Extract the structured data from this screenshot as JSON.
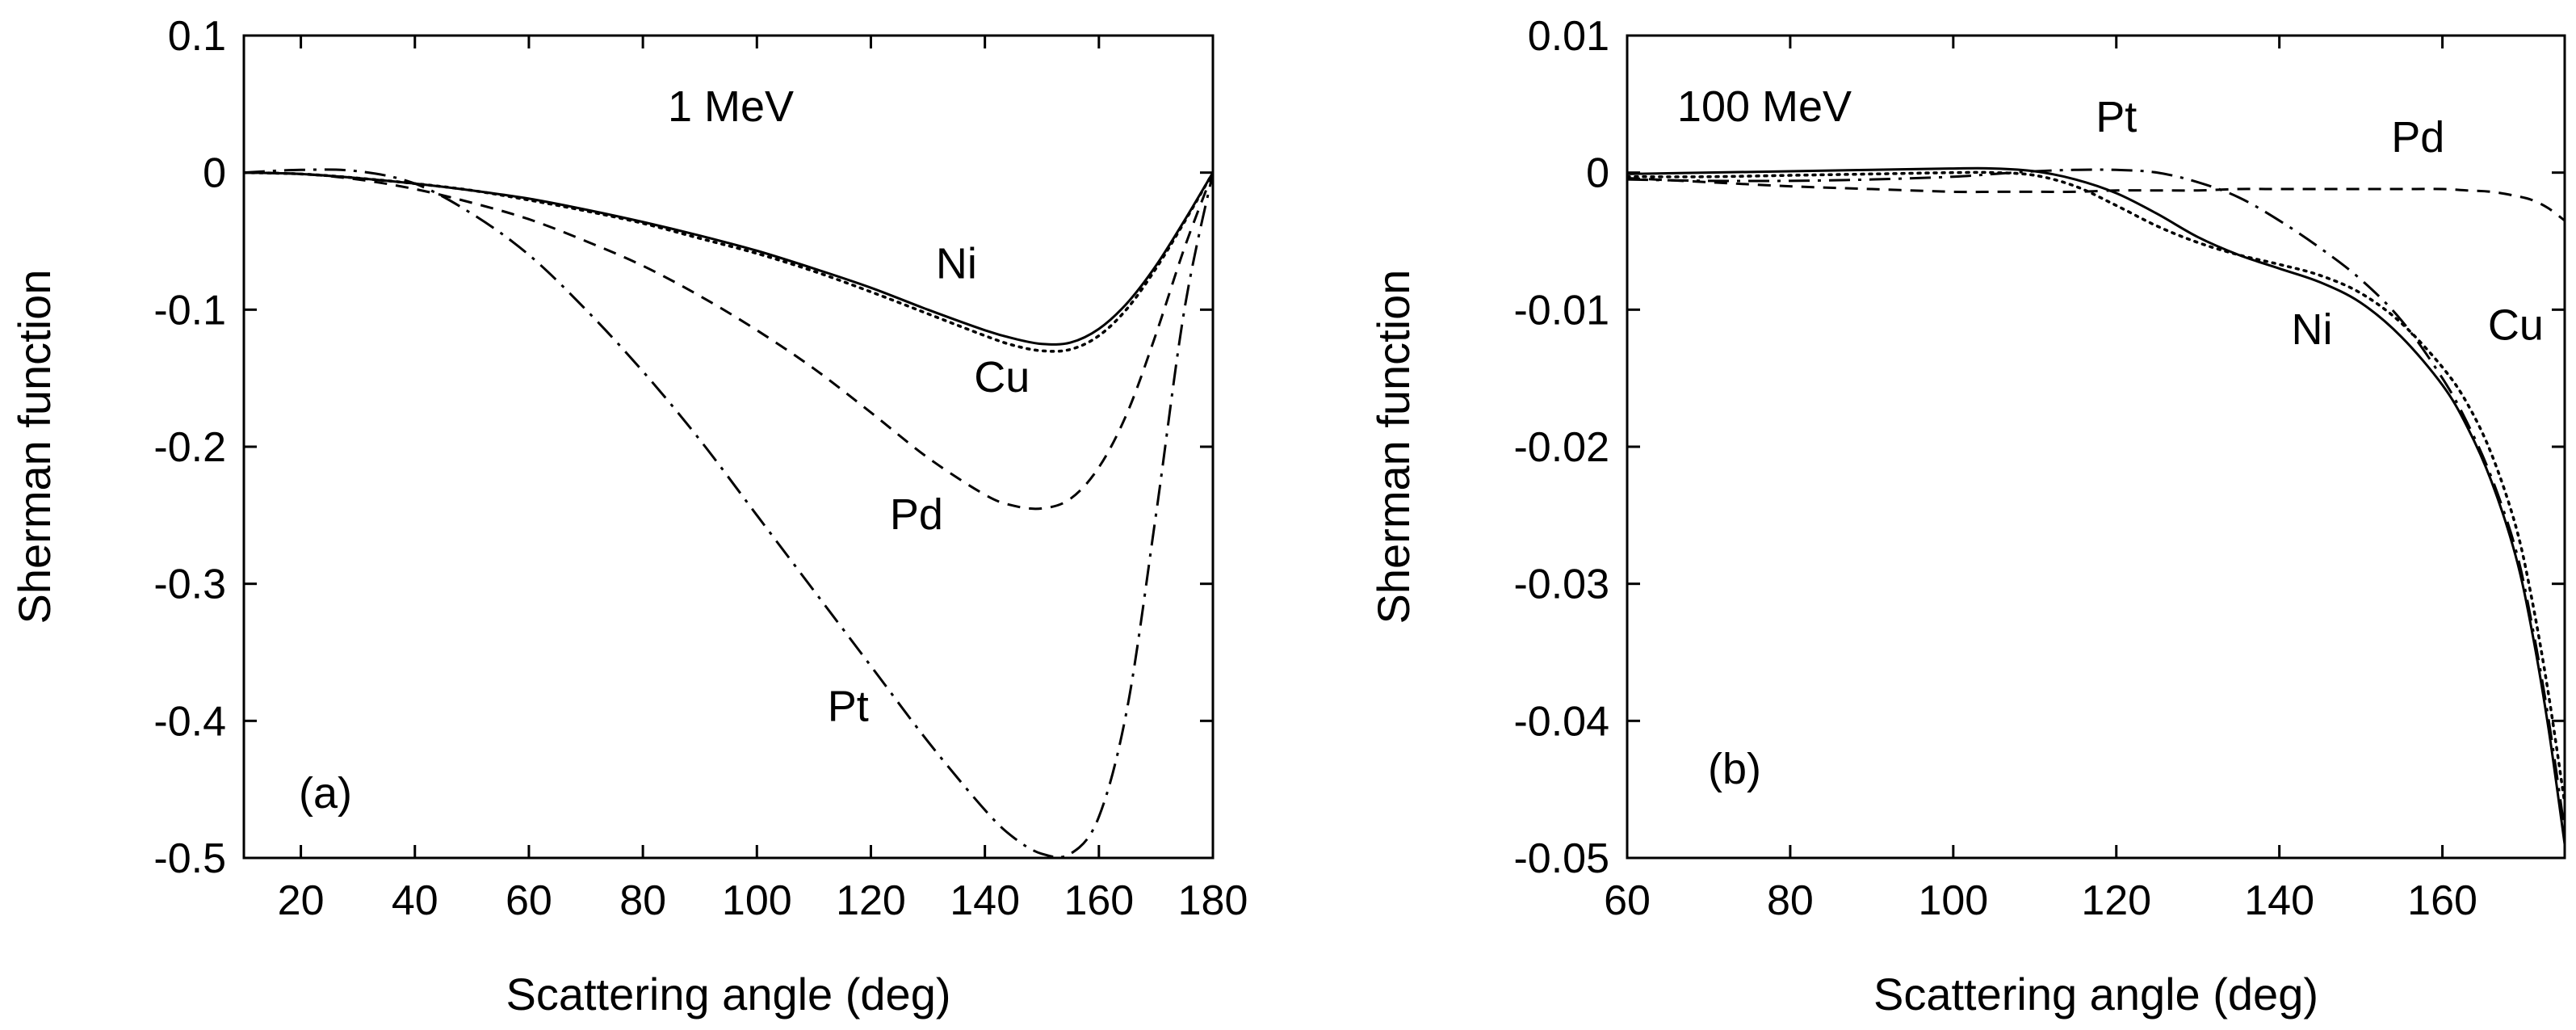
{
  "chart_data": [
    {
      "type": "line",
      "panel": "(a)",
      "annotation": "1 MeV",
      "xlabel": "Scattering angle  (deg)",
      "ylabel": "Sherman function",
      "xlim": [
        10,
        180
      ],
      "ylim": [
        -0.5,
        0.1
      ],
      "xticks": [
        20,
        40,
        60,
        80,
        100,
        120,
        140,
        160,
        180
      ],
      "xtick_labels": [
        "20",
        "40",
        "60",
        "80",
        "100",
        "120",
        "140",
        "160",
        "180"
      ],
      "yticks": [
        0.1,
        0,
        -0.1,
        -0.2,
        -0.3,
        -0.4,
        -0.5
      ],
      "ytick_labels": [
        "0.1",
        "0",
        "-0.1",
        "-0.2",
        "-0.3",
        "-0.4",
        "-0.5"
      ],
      "series": [
        {
          "name": "Ni",
          "style": "solid",
          "label_at": [
            135,
            -0.077
          ],
          "x": [
            10,
            20,
            30,
            40,
            50,
            60,
            70,
            80,
            90,
            100,
            110,
            120,
            130,
            140,
            145,
            150,
            155,
            160,
            165,
            170,
            175,
            180
          ],
          "y": [
            0,
            -0.001,
            -0.004,
            -0.008,
            -0.013,
            -0.019,
            -0.027,
            -0.036,
            -0.046,
            -0.057,
            -0.07,
            -0.084,
            -0.1,
            -0.115,
            -0.121,
            -0.125,
            -0.124,
            -0.114,
            -0.095,
            -0.068,
            -0.035,
            0
          ]
        },
        {
          "name": "Cu",
          "style": "dotted",
          "label_at": [
            143,
            -0.16
          ],
          "x": [
            10,
            20,
            30,
            40,
            50,
            60,
            70,
            80,
            90,
            100,
            110,
            120,
            130,
            140,
            145,
            150,
            155,
            160,
            165,
            170,
            175,
            180
          ],
          "y": [
            0,
            -0.001,
            -0.004,
            -0.008,
            -0.013,
            -0.02,
            -0.028,
            -0.037,
            -0.048,
            -0.059,
            -0.072,
            -0.087,
            -0.103,
            -0.119,
            -0.126,
            -0.13,
            -0.129,
            -0.119,
            -0.099,
            -0.07,
            -0.036,
            0
          ]
        },
        {
          "name": "Pd",
          "style": "dashed",
          "label_at": [
            128,
            -0.26
          ],
          "x": [
            10,
            20,
            30,
            40,
            50,
            60,
            70,
            80,
            90,
            100,
            110,
            120,
            130,
            140,
            145,
            150,
            155,
            160,
            165,
            170,
            175,
            180
          ],
          "y": [
            0,
            -0.001,
            -0.005,
            -0.012,
            -0.022,
            -0.034,
            -0.05,
            -0.068,
            -0.09,
            -0.115,
            -0.143,
            -0.175,
            -0.208,
            -0.235,
            -0.243,
            -0.245,
            -0.238,
            -0.215,
            -0.175,
            -0.118,
            -0.055,
            0
          ]
        },
        {
          "name": "Pt",
          "style": "dashdot",
          "label_at": [
            116,
            -0.4
          ],
          "x": [
            10,
            20,
            30,
            40,
            50,
            60,
            70,
            80,
            90,
            100,
            110,
            120,
            130,
            140,
            145,
            150,
            155,
            160,
            165,
            170,
            175,
            180
          ],
          "y": [
            0,
            0.002,
            0.001,
            -0.008,
            -0.03,
            -0.06,
            -0.1,
            -0.145,
            -0.195,
            -0.25,
            -0.305,
            -0.36,
            -0.415,
            -0.465,
            -0.485,
            -0.497,
            -0.497,
            -0.47,
            -0.39,
            -0.25,
            -0.1,
            0
          ]
        }
      ]
    },
    {
      "type": "line",
      "panel": "(b)",
      "annotation": "100 MeV",
      "xlabel": "Scattering angle  (deg)",
      "ylabel": "Sherman function",
      "xlim": [
        60,
        175
      ],
      "ylim": [
        -0.05,
        0.01
      ],
      "xticks": [
        60,
        80,
        100,
        120,
        140,
        160
      ],
      "xtick_labels": [
        "60",
        "80",
        "100",
        "120",
        "140",
        "160"
      ],
      "yticks": [
        0.01,
        0,
        -0.01,
        -0.02,
        -0.03,
        -0.04,
        -0.05
      ],
      "ytick_labels": [
        "0.01",
        "0",
        "-0.01",
        "-0.02",
        "-0.03",
        "-0.04",
        "-0.05"
      ],
      "series": [
        {
          "name": "Ni",
          "style": "solid",
          "label_at": [
            144,
            -0.0125
          ],
          "x": [
            60,
            70,
            80,
            90,
            100,
            105,
            110,
            115,
            120,
            125,
            130,
            135,
            140,
            145,
            150,
            155,
            160,
            163,
            166,
            169,
            171,
            173,
            175
          ],
          "y": [
            -0.0001,
            0,
            0.0001,
            0.0002,
            0.0003,
            0.0003,
            0.0001,
            -0.0005,
            -0.0015,
            -0.003,
            -0.0047,
            -0.006,
            -0.007,
            -0.008,
            -0.0095,
            -0.012,
            -0.0155,
            -0.0185,
            -0.0225,
            -0.028,
            -0.0335,
            -0.0405,
            -0.049
          ]
        },
        {
          "name": "Cu",
          "style": "dotted",
          "label_at": [
            169,
            -0.0122
          ],
          "x": [
            60,
            70,
            80,
            90,
            100,
            105,
            110,
            115,
            120,
            125,
            130,
            135,
            140,
            145,
            150,
            155,
            160,
            163,
            166,
            169,
            171,
            173,
            175
          ],
          "y": [
            -0.0003,
            -0.0003,
            -0.0002,
            -0.0001,
            0,
            0,
            -0.0002,
            -0.001,
            -0.0024,
            -0.0039,
            -0.0051,
            -0.006,
            -0.0067,
            -0.0075,
            -0.0088,
            -0.011,
            -0.0142,
            -0.0168,
            -0.0205,
            -0.0258,
            -0.0312,
            -0.038,
            -0.046
          ]
        },
        {
          "name": "Pd",
          "style": "dashed",
          "label_at": [
            157,
            0.0015
          ],
          "x": [
            60,
            70,
            80,
            90,
            100,
            105,
            110,
            115,
            120,
            125,
            130,
            135,
            140,
            145,
            150,
            155,
            160,
            163,
            166,
            169,
            171,
            173,
            175
          ],
          "y": [
            -0.0004,
            -0.0007,
            -0.001,
            -0.0012,
            -0.0014,
            -0.0014,
            -0.0014,
            -0.0014,
            -0.0013,
            -0.0013,
            -0.0013,
            -0.0012,
            -0.0012,
            -0.0012,
            -0.0012,
            -0.0012,
            -0.0012,
            -0.0013,
            -0.0014,
            -0.0017,
            -0.002,
            -0.0026,
            -0.0035
          ]
        },
        {
          "name": "Pt",
          "style": "dashdot",
          "label_at": [
            120,
            0.003
          ],
          "x": [
            60,
            70,
            80,
            90,
            100,
            105,
            110,
            115,
            120,
            125,
            130,
            135,
            140,
            145,
            150,
            155,
            160,
            163,
            166,
            169,
            171,
            173,
            175
          ],
          "y": [
            -0.0005,
            -0.0006,
            -0.0006,
            -0.0005,
            -0.0003,
            -0.0001,
            0.0001,
            0.0002,
            0.0002,
            0,
            -0.0007,
            -0.0018,
            -0.0035,
            -0.0055,
            -0.0078,
            -0.0108,
            -0.015,
            -0.0182,
            -0.0222,
            -0.0275,
            -0.033,
            -0.0398,
            -0.048
          ]
        }
      ]
    }
  ]
}
